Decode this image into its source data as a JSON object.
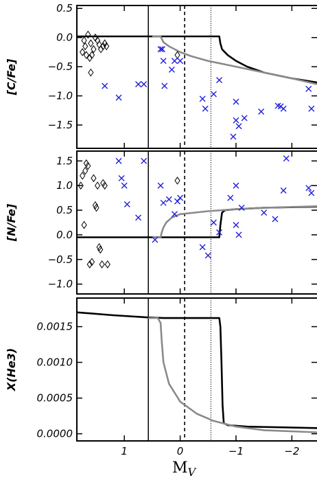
{
  "colors": {
    "black_model": "#000000",
    "gray_model": "#8a8a8a",
    "crosses": "#1f1fe0",
    "diamonds": "#000000"
  },
  "chart_data": {
    "type": "scatter",
    "x_label": "M",
    "x_label_sub": "V",
    "xlim": [
      1.85,
      -2.45
    ],
    "x_ticks": [
      1,
      0,
      -1,
      -2
    ],
    "x_tick_labels": [
      "1",
      "0",
      "−1",
      "−2"
    ],
    "vlines": [
      {
        "x": 0.57,
        "style": "solid"
      },
      {
        "x": -0.08,
        "style": "dashed"
      },
      {
        "x": -0.55,
        "style": "dotted"
      }
    ],
    "panels": [
      {
        "id": "cfe",
        "ylabel": "[C/Fe]",
        "ylim": [
          -1.9,
          0.55
        ],
        "y_ticks": [
          0.5,
          0.0,
          -0.5,
          -1.0,
          -1.5
        ],
        "y_tick_labels": [
          "0.5",
          "0.0",
          "−0.5",
          "−1.0",
          "−1.5"
        ],
        "series": [
          {
            "marker": "diamond",
            "points": [
              [
                1.75,
                -0.25
              ],
              [
                1.72,
                -0.05
              ],
              [
                1.7,
                -0.15
              ],
              [
                1.68,
                -0.3
              ],
              [
                1.65,
                0.05
              ],
              [
                1.62,
                -0.35
              ],
              [
                1.6,
                -0.1
              ],
              [
                1.58,
                -0.3
              ],
              [
                1.55,
                -0.2
              ],
              [
                1.52,
                0.0
              ],
              [
                1.48,
                -0.05
              ],
              [
                1.45,
                -0.12
              ],
              [
                1.42,
                -0.2
              ],
              [
                1.38,
                -0.15
              ],
              [
                1.35,
                -0.1
              ],
              [
                1.32,
                -0.15
              ],
              [
                1.6,
                -0.6
              ],
              [
                0.05,
                -0.3
              ]
            ]
          },
          {
            "marker": "cross",
            "points": [
              [
                1.35,
                -0.83
              ],
              [
                1.1,
                -1.03
              ],
              [
                0.75,
                -0.8
              ],
              [
                0.65,
                -0.8
              ],
              [
                0.35,
                -0.2
              ],
              [
                0.32,
                -0.2
              ],
              [
                0.3,
                -0.4
              ],
              [
                0.28,
                -0.83
              ],
              [
                0.15,
                -0.55
              ],
              [
                0.1,
                -0.4
              ],
              [
                0.0,
                -0.4
              ],
              [
                -0.6,
                -0.97
              ],
              [
                -0.7,
                -0.73
              ],
              [
                -0.45,
                -1.22
              ],
              [
                -0.4,
                -1.05
              ],
              [
                -0.95,
                -1.7
              ],
              [
                -1.0,
                -1.1
              ],
              [
                -1.0,
                -1.42
              ],
              [
                -1.05,
                -1.52
              ],
              [
                -1.15,
                -1.38
              ],
              [
                -1.45,
                -1.27
              ],
              [
                -1.75,
                -1.17
              ],
              [
                -1.8,
                -1.18
              ],
              [
                -1.85,
                -1.22
              ],
              [
                -2.3,
                -0.88
              ],
              [
                -2.35,
                -1.22
              ]
            ]
          }
        ],
        "lines": [
          {
            "color": "black",
            "points": [
              [
                1.85,
                0.02
              ],
              [
                0.5,
                0.02
              ],
              [
                -0.7,
                0.02
              ],
              [
                -0.72,
                -0.1
              ],
              [
                -0.75,
                -0.2
              ],
              [
                -0.85,
                -0.3
              ],
              [
                -1.0,
                -0.4
              ],
              [
                -1.2,
                -0.5
              ],
              [
                -1.5,
                -0.6
              ],
              [
                -2.0,
                -0.7
              ],
              [
                -2.45,
                -0.77
              ]
            ]
          },
          {
            "color": "gray",
            "points": [
              [
                0.5,
                0.02
              ],
              [
                0.35,
                0.02
              ],
              [
                0.33,
                -0.02
              ],
              [
                0.3,
                -0.08
              ],
              [
                0.2,
                -0.15
              ],
              [
                0.0,
                -0.25
              ],
              [
                -0.2,
                -0.32
              ],
              [
                -0.5,
                -0.4
              ],
              [
                -1.0,
                -0.5
              ],
              [
                -1.5,
                -0.6
              ],
              [
                -2.0,
                -0.7
              ],
              [
                -2.45,
                -0.8
              ]
            ]
          }
        ]
      },
      {
        "id": "nfe",
        "ylabel": "[N/Fe]",
        "ylim": [
          -1.2,
          1.7
        ],
        "y_ticks": [
          1.5,
          1.0,
          0.5,
          0.0,
          -0.5,
          -1.0
        ],
        "y_tick_labels": [
          "1.5",
          "1.0",
          "0.5",
          "0.0",
          "−0.5",
          "−1.0"
        ],
        "series": [
          {
            "marker": "diamond",
            "points": [
              [
                1.78,
                1.0
              ],
              [
                1.75,
                1.2
              ],
              [
                1.72,
                0.2
              ],
              [
                1.7,
                1.3
              ],
              [
                1.68,
                1.45
              ],
              [
                1.65,
                1.4
              ],
              [
                1.62,
                -0.6
              ],
              [
                1.58,
                -0.55
              ],
              [
                1.55,
                1.15
              ],
              [
                1.52,
                0.6
              ],
              [
                1.5,
                0.55
              ],
              [
                1.48,
                1.0
              ],
              [
                1.45,
                -0.25
              ],
              [
                1.43,
                -0.3
              ],
              [
                1.4,
                -0.6
              ],
              [
                1.38,
                1.05
              ],
              [
                1.35,
                1.0
              ],
              [
                1.3,
                -0.6
              ],
              [
                0.05,
                1.1
              ]
            ]
          },
          {
            "marker": "cross",
            "points": [
              [
                1.1,
                1.5
              ],
              [
                1.05,
                1.15
              ],
              [
                1.0,
                1.0
              ],
              [
                0.95,
                0.62
              ],
              [
                0.75,
                0.35
              ],
              [
                0.65,
                1.5
              ],
              [
                0.45,
                -0.1
              ],
              [
                0.35,
                1.0
              ],
              [
                0.3,
                0.65
              ],
              [
                0.2,
                0.72
              ],
              [
                0.1,
                0.42
              ],
              [
                0.05,
                0.68
              ],
              [
                0.0,
                0.75
              ],
              [
                -0.4,
                -0.25
              ],
              [
                -0.5,
                -0.42
              ],
              [
                -0.6,
                0.25
              ],
              [
                -0.7,
                0.05
              ],
              [
                -0.9,
                0.75
              ],
              [
                -1.0,
                1.0
              ],
              [
                -1.0,
                0.2
              ],
              [
                -1.05,
                0.0
              ],
              [
                -1.1,
                0.55
              ],
              [
                -1.5,
                0.45
              ],
              [
                -1.7,
                0.32
              ],
              [
                -1.85,
                0.9
              ],
              [
                -1.9,
                1.55
              ],
              [
                -2.3,
                0.95
              ],
              [
                -2.35,
                0.85
              ]
            ]
          }
        ],
        "lines": [
          {
            "color": "black",
            "points": [
              [
                1.85,
                -0.05
              ],
              [
                0.5,
                -0.05
              ],
              [
                -0.7,
                -0.05
              ],
              [
                -0.72,
                0.2
              ],
              [
                -0.75,
                0.45
              ],
              [
                -0.8,
                0.5
              ],
              [
                -1.0,
                0.52
              ],
              [
                -1.5,
                0.55
              ],
              [
                -2.45,
                0.57
              ]
            ]
          },
          {
            "color": "gray",
            "points": [
              [
                0.5,
                -0.05
              ],
              [
                0.35,
                -0.05
              ],
              [
                0.33,
                0.05
              ],
              [
                0.3,
                0.15
              ],
              [
                0.25,
                0.25
              ],
              [
                0.15,
                0.35
              ],
              [
                0.0,
                0.42
              ],
              [
                -0.5,
                0.48
              ],
              [
                -1.0,
                0.52
              ],
              [
                -1.5,
                0.55
              ],
              [
                -2.45,
                0.58
              ]
            ]
          }
        ]
      },
      {
        "id": "he3",
        "ylabel": "X(He3)",
        "ylim": [
          -0.0001,
          0.0019
        ],
        "y_ticks": [
          0.0015,
          0.001,
          0.0005,
          0.0
        ],
        "y_tick_labels": [
          "0.0015",
          "0.0010",
          "0.0005",
          "0.0000"
        ],
        "series": [],
        "lines": [
          {
            "color": "black",
            "points": [
              [
                1.85,
                0.0017
              ],
              [
                1.2,
                0.00166
              ],
              [
                0.6,
                0.00163
              ],
              [
                0.3,
                0.00162
              ],
              [
                -0.3,
                0.00162
              ],
              [
                -0.7,
                0.00162
              ],
              [
                -0.72,
                0.0015
              ],
              [
                -0.74,
                0.001
              ],
              [
                -0.76,
                0.0004
              ],
              [
                -0.78,
                0.00015
              ],
              [
                -0.85,
                0.00012
              ],
              [
                -1.2,
                0.0001
              ],
              [
                -1.8,
                9e-05
              ],
              [
                -2.45,
                8e-05
              ]
            ]
          },
          {
            "color": "gray",
            "points": [
              [
                0.57,
                0.00162
              ],
              [
                0.4,
                0.00162
              ],
              [
                0.35,
                0.00155
              ],
              [
                0.33,
                0.0013
              ],
              [
                0.3,
                0.001
              ],
              [
                0.2,
                0.0007
              ],
              [
                0.0,
                0.00045
              ],
              [
                -0.3,
                0.00028
              ],
              [
                -0.6,
                0.00018
              ],
              [
                -1.0,
                0.0001
              ],
              [
                -1.5,
                5e-05
              ],
              [
                -2.45,
                2e-05
              ]
            ]
          }
        ]
      }
    ]
  }
}
